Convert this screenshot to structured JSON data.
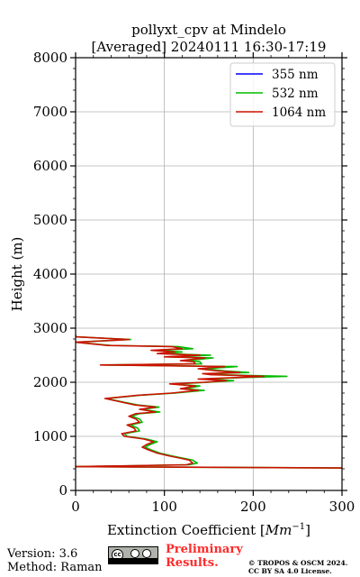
{
  "chart_data": {
    "type": "line",
    "title_line1": "pollyxt_cpv at Mindelo",
    "title_line2": "[Averaged] 20240111 16:30-17:19",
    "xlabel_text": "Extinction Coefficient [",
    "xlabel_unit": "Mm",
    "xlabel_exp": "−1",
    "xlabel_close": "]",
    "ylabel": "Height (m)",
    "xlim": [
      0,
      300
    ],
    "ylim": [
      0,
      8000
    ],
    "x_ticks": [
      0,
      100,
      200,
      300
    ],
    "y_ticks": [
      0,
      1000,
      2000,
      3000,
      4000,
      5000,
      6000,
      7000,
      8000
    ],
    "grid": true,
    "legend_position": "top-right",
    "series": [
      {
        "name": "355 nm",
        "color": "#0000ff",
        "points": []
      },
      {
        "name": "532 nm",
        "color": "#00bb00",
        "points": [
          [
            300,
            415
          ],
          [
            0,
            440
          ],
          [
            128,
            475
          ],
          [
            137,
            505
          ],
          [
            132,
            560
          ],
          [
            120,
            600
          ],
          [
            108,
            640
          ],
          [
            95,
            690
          ],
          [
            85,
            750
          ],
          [
            78,
            800
          ],
          [
            84,
            850
          ],
          [
            92,
            900
          ],
          [
            80,
            950
          ],
          [
            58,
            1000
          ],
          [
            55,
            1050
          ],
          [
            72,
            1100
          ],
          [
            70,
            1150
          ],
          [
            62,
            1210
          ],
          [
            75,
            1260
          ],
          [
            72,
            1320
          ],
          [
            63,
            1370
          ],
          [
            72,
            1420
          ],
          [
            95,
            1450
          ],
          [
            75,
            1500
          ],
          [
            94,
            1540
          ],
          [
            70,
            1580
          ],
          [
            52,
            1640
          ],
          [
            35,
            1700
          ],
          [
            48,
            1720
          ],
          [
            72,
            1760
          ],
          [
            112,
            1800
          ],
          [
            145,
            1850
          ],
          [
            122,
            1880
          ],
          [
            140,
            1930
          ],
          [
            110,
            1970
          ],
          [
            150,
            2000
          ],
          [
            178,
            2030
          ],
          [
            143,
            2060
          ],
          [
            195,
            2090
          ],
          [
            238,
            2110
          ],
          [
            160,
            2140
          ],
          [
            150,
            2160
          ],
          [
            195,
            2180
          ],
          [
            168,
            2210
          ],
          [
            145,
            2250
          ],
          [
            182,
            2290
          ],
          [
            30,
            2320
          ],
          [
            142,
            2340
          ],
          [
            140,
            2380
          ],
          [
            125,
            2400
          ],
          [
            155,
            2450
          ],
          [
            105,
            2470
          ],
          [
            152,
            2500
          ],
          [
            98,
            2530
          ],
          [
            120,
            2560
          ],
          [
            90,
            2590
          ],
          [
            132,
            2620
          ],
          [
            115,
            2660
          ],
          [
            40,
            2680
          ],
          [
            0,
            2740
          ],
          [
            62,
            2790
          ],
          [
            0,
            2840
          ],
          [
            0,
            2880
          ]
        ]
      },
      {
        "name": "1064 nm",
        "color": "#cc1100",
        "points": [
          [
            300,
            415
          ],
          [
            0,
            440
          ],
          [
            125,
            475
          ],
          [
            132,
            505
          ],
          [
            128,
            560
          ],
          [
            117,
            600
          ],
          [
            105,
            640
          ],
          [
            92,
            690
          ],
          [
            82,
            750
          ],
          [
            75,
            800
          ],
          [
            80,
            850
          ],
          [
            88,
            900
          ],
          [
            77,
            950
          ],
          [
            55,
            1000
          ],
          [
            52,
            1050
          ],
          [
            68,
            1100
          ],
          [
            66,
            1150
          ],
          [
            58,
            1210
          ],
          [
            72,
            1260
          ],
          [
            68,
            1320
          ],
          [
            60,
            1370
          ],
          [
            68,
            1420
          ],
          [
            90,
            1450
          ],
          [
            72,
            1500
          ],
          [
            90,
            1540
          ],
          [
            67,
            1580
          ],
          [
            50,
            1640
          ],
          [
            33,
            1700
          ],
          [
            46,
            1720
          ],
          [
            70,
            1760
          ],
          [
            108,
            1800
          ],
          [
            138,
            1850
          ],
          [
            118,
            1880
          ],
          [
            135,
            1930
          ],
          [
            106,
            1970
          ],
          [
            145,
            2000
          ],
          [
            170,
            2030
          ],
          [
            138,
            2060
          ],
          [
            186,
            2090
          ],
          [
            212,
            2110
          ],
          [
            152,
            2140
          ],
          [
            143,
            2160
          ],
          [
            185,
            2180
          ],
          [
            160,
            2210
          ],
          [
            138,
            2250
          ],
          [
            168,
            2290
          ],
          [
            28,
            2320
          ],
          [
            135,
            2340
          ],
          [
            133,
            2380
          ],
          [
            118,
            2400
          ],
          [
            146,
            2450
          ],
          [
            100,
            2470
          ],
          [
            140,
            2500
          ],
          [
            92,
            2530
          ],
          [
            112,
            2560
          ],
          [
            85,
            2590
          ],
          [
            120,
            2620
          ],
          [
            108,
            2660
          ],
          [
            36,
            2680
          ],
          [
            0,
            2740
          ],
          [
            60,
            2790
          ],
          [
            0,
            2840
          ],
          [
            0,
            2880
          ]
        ]
      }
    ]
  },
  "footer": {
    "version": "Version: 3.6",
    "method": "Method: Raman",
    "prelim_line1": "Preliminary",
    "prelim_line2": "Results.",
    "copyright_line1": "© TROPOS & OSCM 2024.",
    "copyright_line2": "CC BY SA 4.0 License."
  }
}
